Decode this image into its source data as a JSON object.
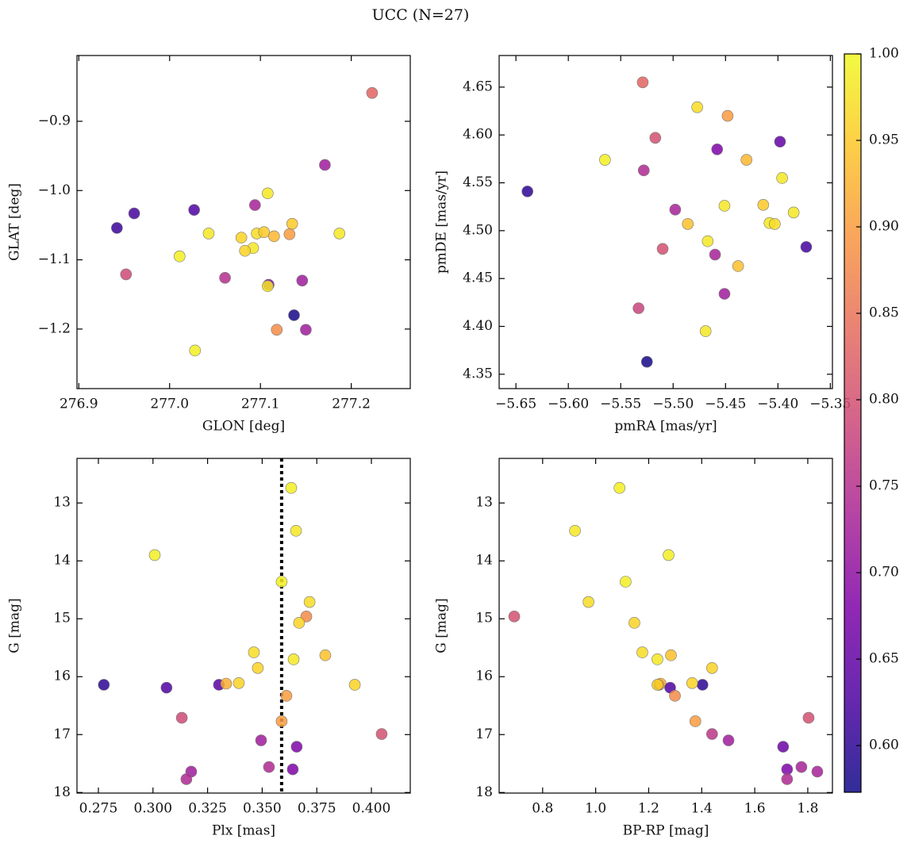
{
  "title": "UCC (N=27)",
  "colorbar": {
    "colormap": "plasma",
    "lim": [
      0.573,
      1.0
    ],
    "ticks": [
      {
        "value": 0.6,
        "label": "0.60"
      },
      0.65,
      {
        "value": 0.7,
        "label": "0.70"
      },
      0.75,
      {
        "value": 0.8,
        "label": "0.80"
      },
      0.85,
      {
        "value": 0.9,
        "label": "0.90"
      },
      0.95,
      {
        "value": 1.0,
        "label": "1.00"
      }
    ]
  },
  "chart_data": [
    {
      "type": "scatter",
      "xlabel": "GLON [deg]",
      "ylabel": "GLAT [deg]",
      "x": [
        277.223,
        277.171,
        277.108,
        277.094,
        277.027,
        276.961,
        276.942,
        277.135,
        277.043,
        277.187,
        277.096,
        277.104,
        277.115,
        277.132,
        277.079,
        277.092,
        277.083,
        277.011,
        276.952,
        277.061,
        277.109,
        277.108,
        277.146,
        277.137,
        277.118,
        277.15,
        277.028
      ],
      "values": [
        -0.859,
        -0.963,
        -1.004,
        -1.021,
        -1.028,
        -1.033,
        -1.054,
        -1.048,
        -1.062,
        -1.062,
        -1.062,
        -1.06,
        -1.066,
        -1.063,
        -1.068,
        -1.083,
        -1.087,
        -1.095,
        -1.121,
        -1.126,
        -1.136,
        -1.138,
        -1.13,
        -1.18,
        -1.201,
        -1.201,
        -1.231
      ],
      "color_values": [
        0.83,
        0.72,
        0.98,
        0.73,
        0.63,
        0.62,
        0.61,
        0.95,
        0.98,
        0.98,
        0.97,
        0.95,
        0.93,
        0.9,
        0.96,
        0.98,
        0.96,
        0.99,
        0.79,
        0.75,
        0.68,
        0.98,
        0.72,
        0.58,
        0.88,
        0.72,
        0.99
      ],
      "xlim": [
        276.898,
        277.265
      ],
      "ylim": [
        -1.286,
        -0.805
      ],
      "xticks": [
        276.9,
        {
          "value": 277.0,
          "label": "277.0"
        },
        277.1,
        277.2
      ],
      "yticks": [
        {
          "value": -1.2,
          "label": "−1.2"
        },
        {
          "value": -1.1,
          "label": "−1.1"
        },
        {
          "value": -1.0,
          "label": "−1.0"
        },
        {
          "value": -0.9,
          "label": "−0.9"
        }
      ]
    },
    {
      "type": "scatter",
      "xlabel": "pmRA [mas/yr]",
      "ylabel": "pmDE [mas/yr]",
      "x": [
        -5.529,
        -5.477,
        -5.448,
        -5.517,
        -5.398,
        -5.458,
        -5.565,
        -5.43,
        -5.528,
        -5.396,
        -5.639,
        -5.414,
        -5.451,
        -5.498,
        -5.385,
        -5.486,
        -5.408,
        -5.403,
        -5.373,
        -5.467,
        -5.51,
        -5.46,
        -5.438,
        -5.451,
        -5.533,
        -5.469,
        -5.525
      ],
      "values": [
        4.655,
        4.629,
        4.62,
        4.597,
        4.593,
        4.585,
        4.574,
        4.574,
        4.563,
        4.555,
        4.541,
        4.527,
        4.526,
        4.522,
        4.519,
        4.507,
        4.508,
        4.507,
        4.483,
        4.489,
        4.481,
        4.475,
        4.463,
        4.434,
        4.419,
        4.395,
        4.363
      ],
      "color_values": [
        0.83,
        0.97,
        0.9,
        0.8,
        0.65,
        0.68,
        0.99,
        0.93,
        0.74,
        0.98,
        0.6,
        0.95,
        0.98,
        0.73,
        0.98,
        0.94,
        0.98,
        0.97,
        0.62,
        0.98,
        0.8,
        0.73,
        0.94,
        0.72,
        0.78,
        0.98,
        0.58
      ],
      "xlim": [
        -5.666,
        -5.348
      ],
      "ylim": [
        4.335,
        4.683
      ],
      "xticks": [
        {
          "value": -5.65,
          "label": "−5.65"
        },
        {
          "value": -5.6,
          "label": "−5.60"
        },
        {
          "value": -5.55,
          "label": "−5.55"
        },
        {
          "value": -5.5,
          "label": "−5.50"
        },
        {
          "value": -5.45,
          "label": "−5.45"
        },
        {
          "value": -5.4,
          "label": "−5.40"
        },
        {
          "value": -5.35,
          "label": "−5.35"
        }
      ],
      "yticks": [
        4.35,
        {
          "value": 4.4,
          "label": "4.40"
        },
        4.45,
        {
          "value": 4.5,
          "label": "4.50"
        },
        4.55,
        {
          "value": 4.6,
          "label": "4.60"
        },
        4.65
      ]
    },
    {
      "type": "scatter",
      "xlabel": "Plx [mas]",
      "ylabel": "G [mag]",
      "vline": 0.3589,
      "x": [
        0.3633,
        0.3655,
        0.3008,
        0.3589,
        0.3717,
        0.3702,
        0.3669,
        0.3462,
        0.3789,
        0.3644,
        0.348,
        0.2775,
        0.3302,
        0.3335,
        0.3393,
        0.3924,
        0.3062,
        0.3611,
        0.3132,
        0.3589,
        0.4047,
        0.3495,
        0.3658,
        0.3175,
        0.3531,
        0.364,
        0.3153
      ],
      "values": [
        12.74,
        13.48,
        13.9,
        14.36,
        14.71,
        14.96,
        15.07,
        15.58,
        15.63,
        15.7,
        15.85,
        16.14,
        16.14,
        16.12,
        16.11,
        16.14,
        16.19,
        16.33,
        16.71,
        16.77,
        16.99,
        17.1,
        17.21,
        17.64,
        17.56,
        17.6,
        17.77
      ],
      "color_values": [
        0.99,
        0.98,
        0.99,
        0.99,
        0.97,
        0.88,
        0.96,
        0.97,
        0.94,
        0.98,
        0.96,
        0.6,
        0.64,
        0.92,
        0.96,
        0.96,
        0.63,
        0.9,
        0.79,
        0.9,
        0.8,
        0.72,
        0.68,
        0.72,
        0.74,
        0.68,
        0.74
      ],
      "xlim": [
        0.2652,
        0.4178
      ],
      "ylim": [
        18.01,
        12.23
      ],
      "xticks": [
        0.275,
        {
          "value": 0.3,
          "label": "0.300"
        },
        0.325,
        {
          "value": 0.35,
          "label": "0.350"
        },
        0.375,
        {
          "value": 0.4,
          "label": "0.400"
        }
      ],
      "yticks": [
        13,
        14,
        15,
        16,
        17,
        18
      ]
    },
    {
      "type": "scatter",
      "xlabel": "BP-RP [mag]",
      "ylabel": "G [mag]",
      "x": [
        1.09,
        0.922,
        1.113,
        1.275,
        0.973,
        0.693,
        1.146,
        1.176,
        1.284,
        1.233,
        1.439,
        1.403,
        1.239,
        1.245,
        1.364,
        1.281,
        1.299,
        1.803,
        1.376,
        1.439,
        1.501,
        1.707,
        1.722,
        1.776,
        1.836,
        1.722,
        1.233
      ],
      "values": [
        12.74,
        13.48,
        14.36,
        13.9,
        14.71,
        14.96,
        15.07,
        15.58,
        15.63,
        15.7,
        15.85,
        16.14,
        16.14,
        16.12,
        16.11,
        16.19,
        16.33,
        16.71,
        16.77,
        16.99,
        17.1,
        17.21,
        17.6,
        17.56,
        17.64,
        17.77,
        16.14
      ],
      "color_values": [
        0.99,
        0.98,
        0.99,
        0.99,
        0.97,
        0.8,
        0.96,
        0.97,
        0.94,
        0.98,
        0.96,
        0.6,
        0.64,
        0.92,
        0.96,
        0.63,
        0.88,
        0.8,
        0.9,
        0.76,
        0.72,
        0.66,
        0.68,
        0.73,
        0.73,
        0.74,
        0.96
      ],
      "xlim": [
        0.636,
        1.893
      ],
      "ylim": [
        18.01,
        12.23
      ],
      "xticks": [
        0.8,
        {
          "value": 1.0,
          "label": "1.0"
        },
        1.2,
        1.4,
        1.6,
        1.8
      ],
      "yticks": [
        13,
        14,
        15,
        16,
        17,
        18
      ]
    }
  ]
}
